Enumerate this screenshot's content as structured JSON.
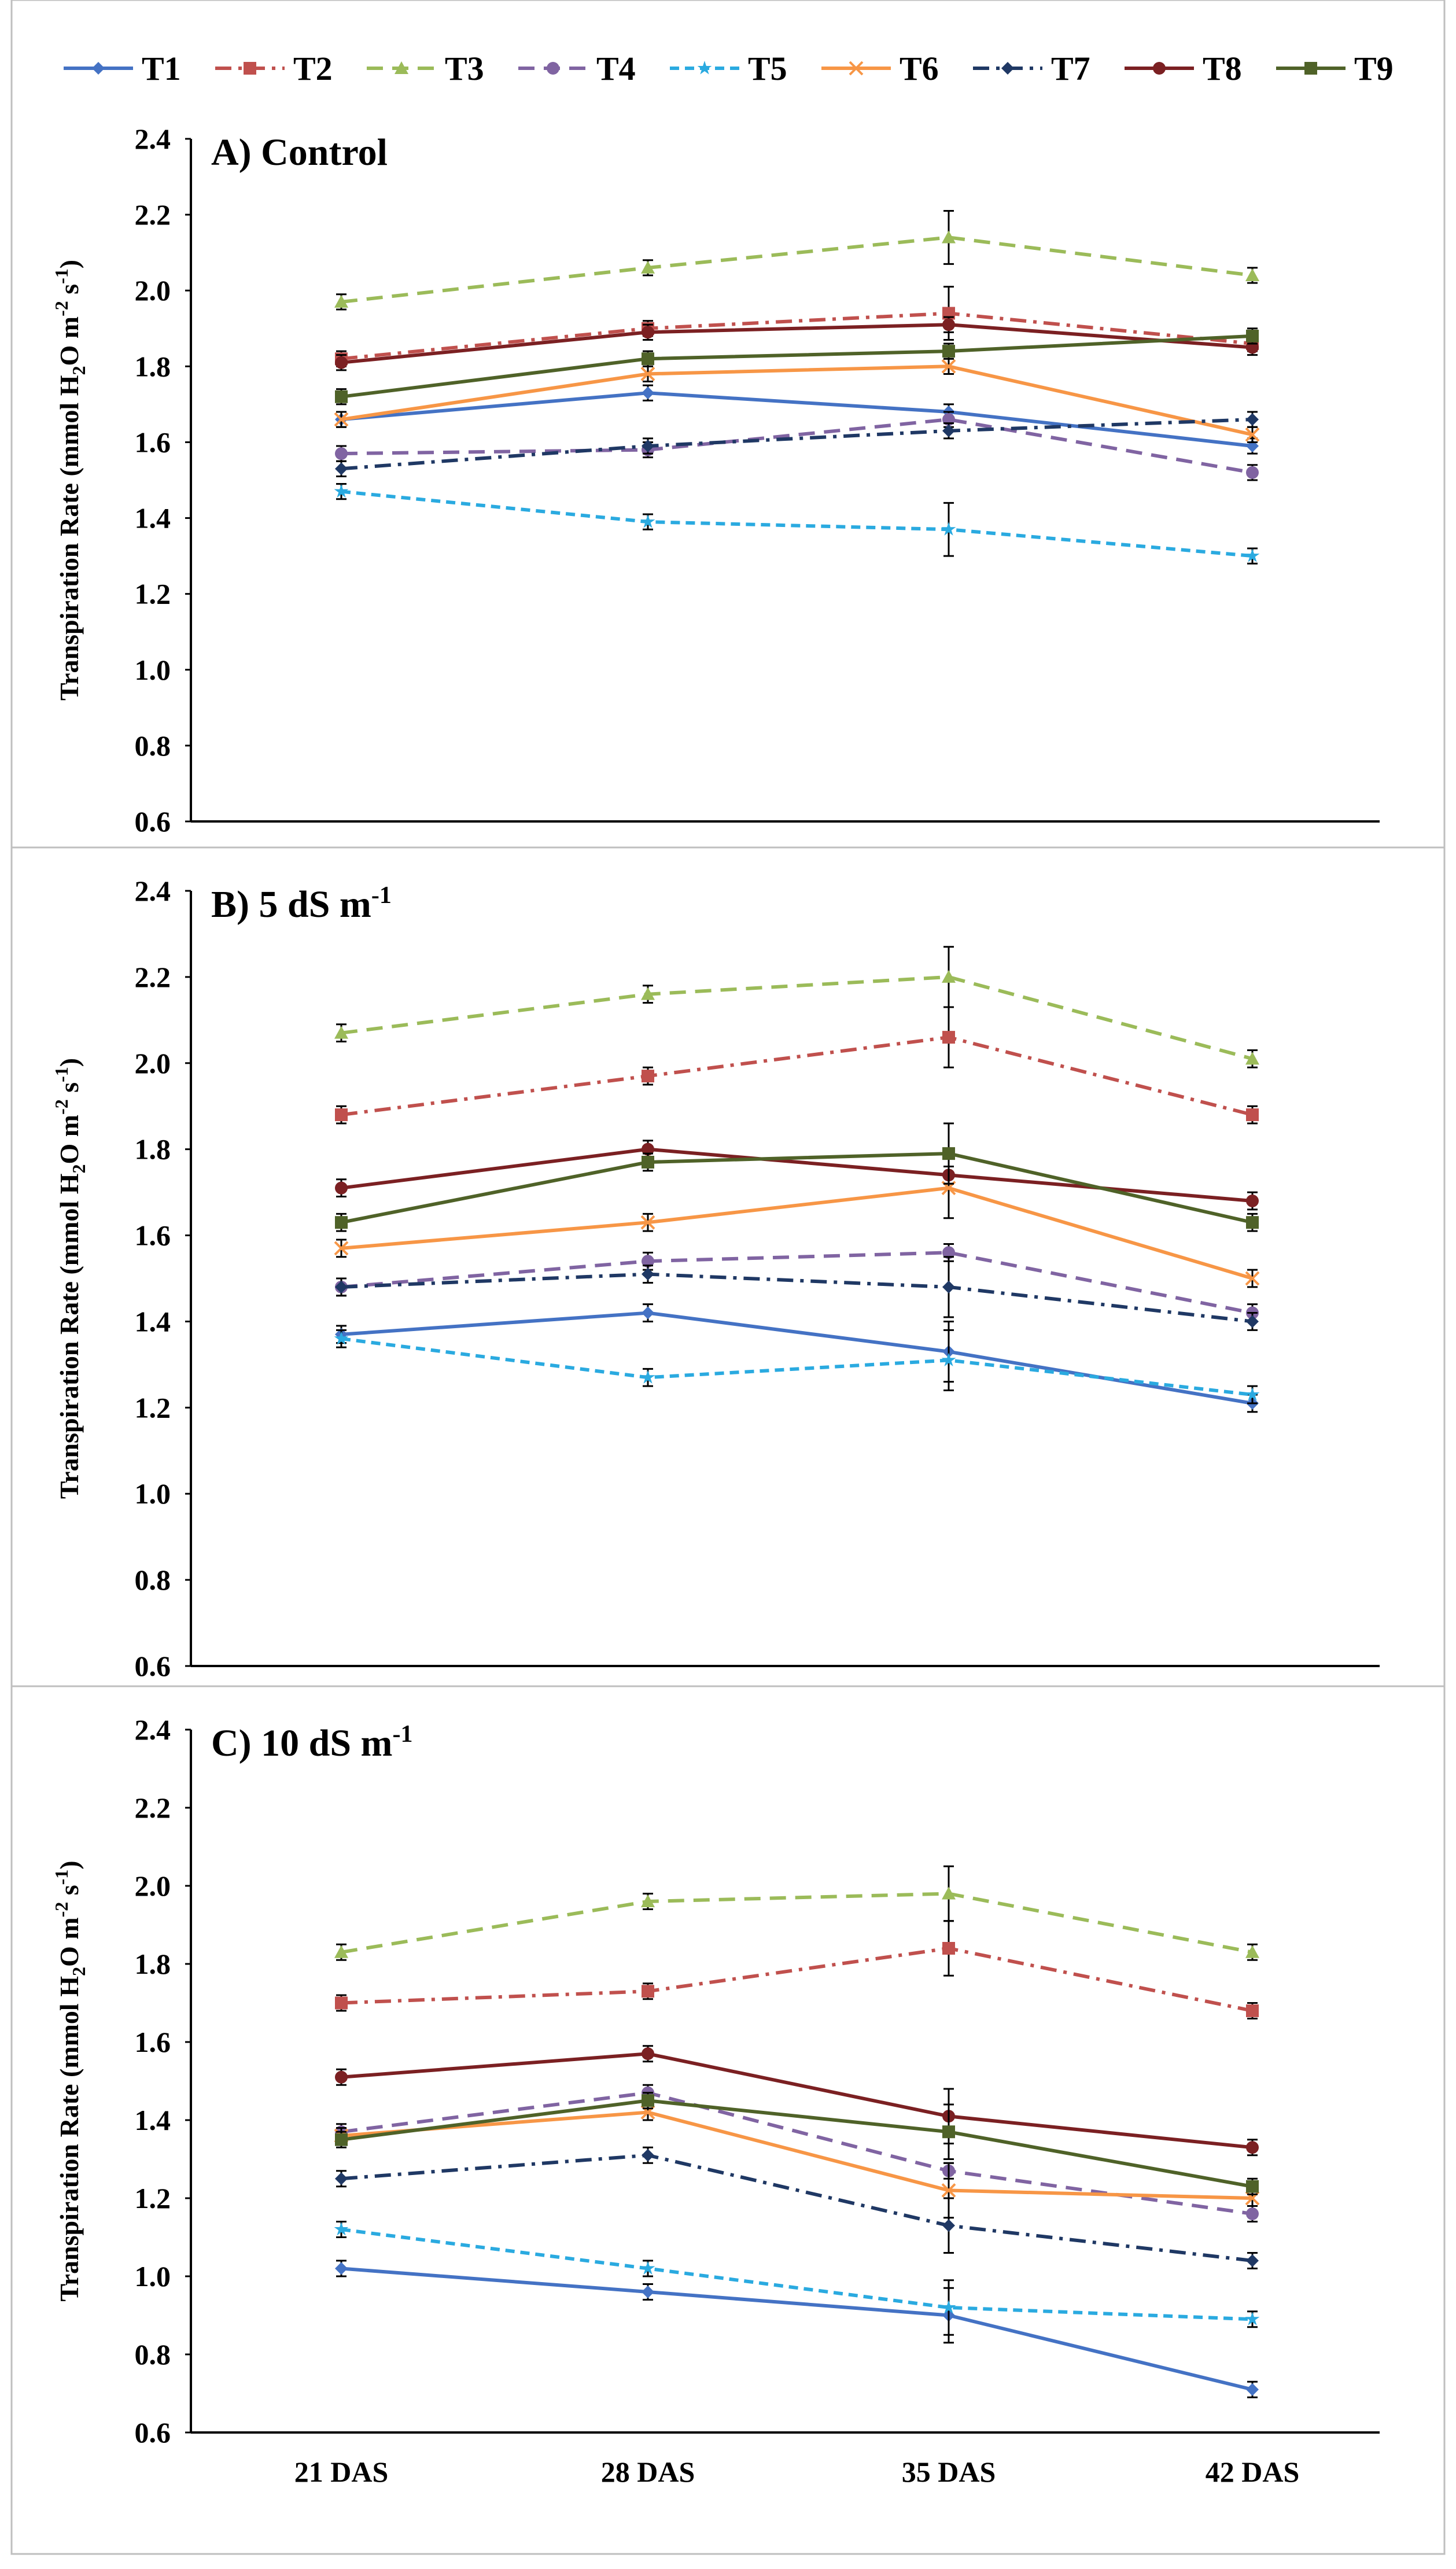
{
  "chart_data": [
    {
      "type": "line",
      "title": "A) Control",
      "ylabel": "Transpiration Rate (mmol H2O m-2 s-1)",
      "ylim": [
        0.6,
        2.4
      ],
      "yticks": [
        "0.6",
        "0.8",
        "1.0",
        "1.2",
        "1.4",
        "1.6",
        "1.8",
        "2.0",
        "2.2",
        "2.4"
      ],
      "categories": [
        "21 DAS",
        "28 DAS",
        "35 DAS",
        "42 DAS"
      ],
      "show_xtick_labels": false,
      "series": [
        {
          "name": "T1",
          "values": [
            1.66,
            1.73,
            1.68,
            1.59
          ],
          "errors": [
            0.02,
            0.02,
            0.02,
            0.02
          ]
        },
        {
          "name": "T2",
          "values": [
            1.82,
            1.9,
            1.94,
            1.86
          ],
          "errors": [
            0.02,
            0.02,
            0.07,
            0.02
          ]
        },
        {
          "name": "T3",
          "values": [
            1.97,
            2.06,
            2.14,
            2.04
          ],
          "errors": [
            0.02,
            0.02,
            0.07,
            0.02
          ]
        },
        {
          "name": "T4",
          "values": [
            1.57,
            1.58,
            1.66,
            1.52
          ],
          "errors": [
            0.02,
            0.02,
            0.02,
            0.02
          ]
        },
        {
          "name": "T5",
          "values": [
            1.47,
            1.39,
            1.37,
            1.3
          ],
          "errors": [
            0.02,
            0.02,
            0.07,
            0.02
          ]
        },
        {
          "name": "T6",
          "values": [
            1.66,
            1.78,
            1.8,
            1.62
          ],
          "errors": [
            0.02,
            0.02,
            0.02,
            0.02
          ]
        },
        {
          "name": "T7",
          "values": [
            1.53,
            1.59,
            1.63,
            1.66
          ],
          "errors": [
            0.02,
            0.02,
            0.02,
            0.02
          ]
        },
        {
          "name": "T8",
          "values": [
            1.81,
            1.89,
            1.91,
            1.85
          ],
          "errors": [
            0.02,
            0.02,
            0.02,
            0.02
          ]
        },
        {
          "name": "T9",
          "values": [
            1.72,
            1.82,
            1.84,
            1.88
          ],
          "errors": [
            0.02,
            0.02,
            0.02,
            0.02
          ]
        }
      ]
    },
    {
      "type": "line",
      "title": "B) 5 dS m-1",
      "ylabel": "Transpiration Rate (mmol H2O m-2 s-1)",
      "ylim": [
        0.6,
        2.4
      ],
      "yticks": [
        "0.6",
        "0.8",
        "1.0",
        "1.2",
        "1.4",
        "1.6",
        "1.8",
        "2.0",
        "2.2",
        "2.4"
      ],
      "categories": [
        "21 DAS",
        "28 DAS",
        "35 DAS",
        "42 DAS"
      ],
      "show_xtick_labels": false,
      "series": [
        {
          "name": "T1",
          "values": [
            1.37,
            1.42,
            1.33,
            1.21
          ],
          "errors": [
            0.02,
            0.02,
            0.07,
            0.02
          ]
        },
        {
          "name": "T2",
          "values": [
            1.88,
            1.97,
            2.06,
            1.88
          ],
          "errors": [
            0.02,
            0.02,
            0.07,
            0.02
          ]
        },
        {
          "name": "T3",
          "values": [
            2.07,
            2.16,
            2.2,
            2.01
          ],
          "errors": [
            0.02,
            0.02,
            0.07,
            0.02
          ]
        },
        {
          "name": "T4",
          "values": [
            1.48,
            1.54,
            1.56,
            1.42
          ],
          "errors": [
            0.02,
            0.02,
            0.02,
            0.02
          ]
        },
        {
          "name": "T5",
          "values": [
            1.36,
            1.27,
            1.31,
            1.23
          ],
          "errors": [
            0.02,
            0.02,
            0.07,
            0.02
          ]
        },
        {
          "name": "T6",
          "values": [
            1.57,
            1.63,
            1.71,
            1.5
          ],
          "errors": [
            0.02,
            0.02,
            0.07,
            0.02
          ]
        },
        {
          "name": "T7",
          "values": [
            1.48,
            1.51,
            1.48,
            1.4
          ],
          "errors": [
            0.02,
            0.02,
            0.07,
            0.02
          ]
        },
        {
          "name": "T8",
          "values": [
            1.71,
            1.8,
            1.74,
            1.68
          ],
          "errors": [
            0.02,
            0.02,
            0.02,
            0.02
          ]
        },
        {
          "name": "T9",
          "values": [
            1.63,
            1.77,
            1.79,
            1.63
          ],
          "errors": [
            0.02,
            0.02,
            0.07,
            0.02
          ]
        }
      ]
    },
    {
      "type": "line",
      "title": "C) 10 dS m-1",
      "ylabel": "Transpiration Rate (mmol H2O m-2 s-1)",
      "ylim": [
        0.6,
        2.4
      ],
      "yticks": [
        "0.6",
        "0.8",
        "1.0",
        "1.2",
        "1.4",
        "1.6",
        "1.8",
        "2.0",
        "2.2",
        "2.4"
      ],
      "categories": [
        "21 DAS",
        "28 DAS",
        "35 DAS",
        "42 DAS"
      ],
      "show_xtick_labels": true,
      "series": [
        {
          "name": "T1",
          "values": [
            1.02,
            0.96,
            0.9,
            0.71
          ],
          "errors": [
            0.02,
            0.02,
            0.07,
            0.02
          ]
        },
        {
          "name": "T2",
          "values": [
            1.7,
            1.73,
            1.84,
            1.68
          ],
          "errors": [
            0.02,
            0.02,
            0.07,
            0.02
          ]
        },
        {
          "name": "T3",
          "values": [
            1.83,
            1.96,
            1.98,
            1.83
          ],
          "errors": [
            0.02,
            0.02,
            0.07,
            0.02
          ]
        },
        {
          "name": "T4",
          "values": [
            1.37,
            1.47,
            1.27,
            1.16
          ],
          "errors": [
            0.02,
            0.02,
            0.02,
            0.02
          ]
        },
        {
          "name": "T5",
          "values": [
            1.12,
            1.02,
            0.92,
            0.89
          ],
          "errors": [
            0.02,
            0.02,
            0.07,
            0.02
          ]
        },
        {
          "name": "T6",
          "values": [
            1.36,
            1.42,
            1.22,
            1.2
          ],
          "errors": [
            0.02,
            0.02,
            0.07,
            0.02
          ]
        },
        {
          "name": "T7",
          "values": [
            1.25,
            1.31,
            1.13,
            1.04
          ],
          "errors": [
            0.02,
            0.02,
            0.07,
            0.02
          ]
        },
        {
          "name": "T8",
          "values": [
            1.51,
            1.57,
            1.41,
            1.33
          ],
          "errors": [
            0.02,
            0.02,
            0.07,
            0.02
          ]
        },
        {
          "name": "T9",
          "values": [
            1.35,
            1.45,
            1.37,
            1.23
          ],
          "errors": [
            0.02,
            0.02,
            0.07,
            0.02
          ]
        }
      ]
    }
  ],
  "legend": {
    "placement": "top",
    "items": [
      {
        "name": "T1",
        "color": "#4472C4",
        "marker": "diamond",
        "dash": "solid"
      },
      {
        "name": "T2",
        "color": "#C0504D",
        "marker": "square",
        "dash": "dashdot"
      },
      {
        "name": "T3",
        "color": "#9BBB59",
        "marker": "triangle",
        "dash": "dash"
      },
      {
        "name": "T4",
        "color": "#8064A2",
        "marker": "circle",
        "dash": "dash"
      },
      {
        "name": "T5",
        "color": "#2AAAE0",
        "marker": "star",
        "dash": "shortdash"
      },
      {
        "name": "T6",
        "color": "#F79646",
        "marker": "x",
        "dash": "solid"
      },
      {
        "name": "T7",
        "color": "#1F3864",
        "marker": "diamond",
        "dash": "dashdot"
      },
      {
        "name": "T8",
        "color": "#7B2022",
        "marker": "circle",
        "dash": "solid"
      },
      {
        "name": "T9",
        "color": "#4F6228",
        "marker": "square",
        "dash": "solid"
      }
    ]
  }
}
